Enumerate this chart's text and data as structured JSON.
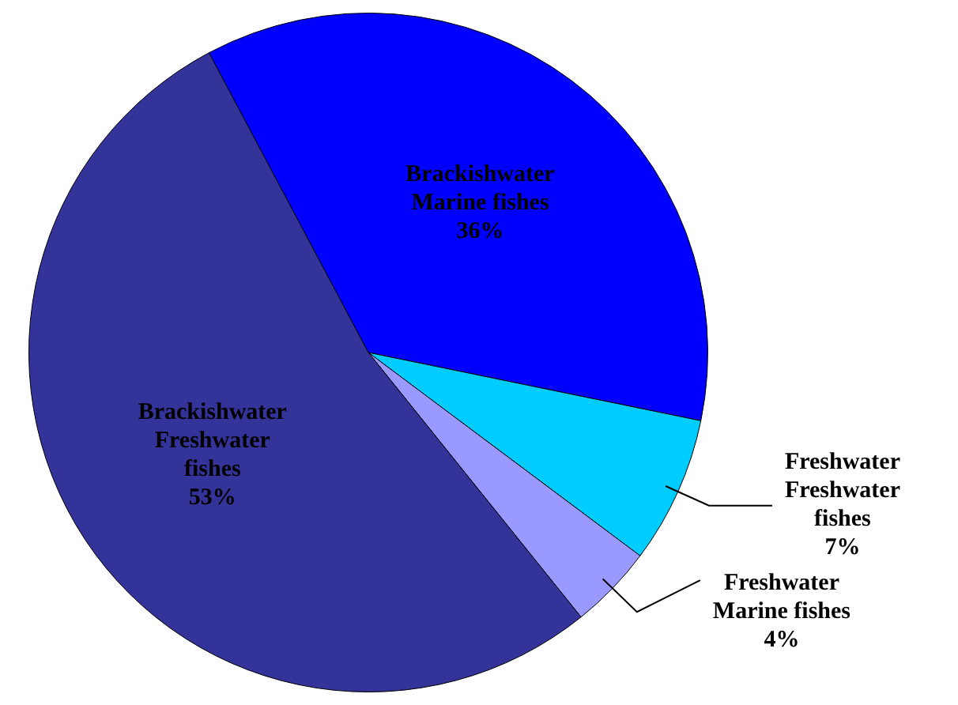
{
  "chart_data": {
    "type": "pie",
    "categories": [
      "Brackishwater Marine fishes",
      "Freshwater Freshwater fishes",
      "Freshwater Marine fishes",
      "Brackishwater Freshwater fishes"
    ],
    "values": [
      36,
      7,
      4,
      53
    ],
    "colors": [
      "#0000ff",
      "#00ccff",
      "#9999ff",
      "#333399"
    ],
    "value_labels": [
      "36%",
      "7%",
      "4%",
      "53%"
    ],
    "legend": false
  }
}
